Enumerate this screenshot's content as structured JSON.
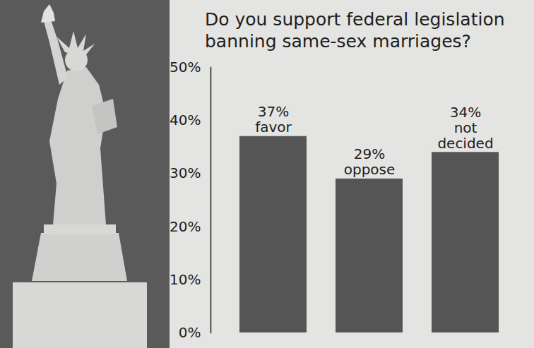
{
  "chart_data": {
    "type": "bar",
    "title": "Do you support federal legislation banning same-sex marriages?",
    "categories": [
      "favor",
      "oppose",
      "not decided"
    ],
    "values": [
      37,
      29,
      34
    ],
    "value_labels": [
      "37%",
      "29%",
      "34%"
    ],
    "color": "#555555",
    "ylim": [
      0,
      50
    ],
    "yticks": [
      {
        "value": 0,
        "label": "0%"
      },
      {
        "value": 10,
        "label": "10%"
      },
      {
        "value": 20,
        "label": "20%"
      },
      {
        "value": 30,
        "label": "30%"
      },
      {
        "value": 40,
        "label": "40%"
      },
      {
        "value": 50,
        "label": "50%"
      }
    ],
    "data_labels": true,
    "tick_labels": "y",
    "grid": false
  }
}
